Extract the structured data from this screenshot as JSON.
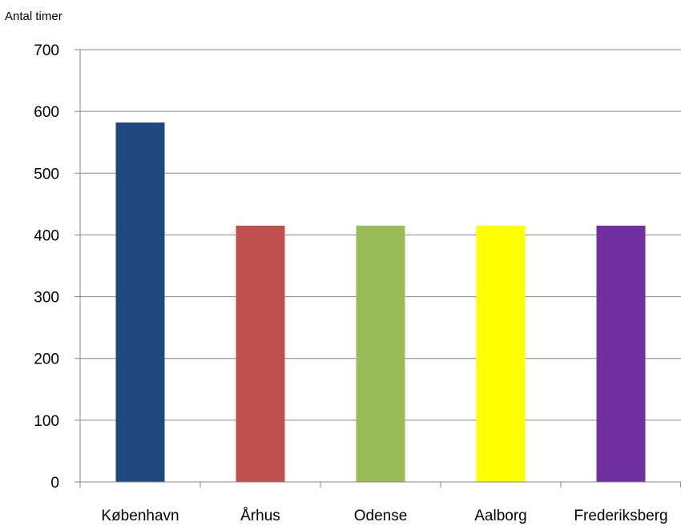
{
  "chart_data": {
    "type": "bar",
    "ylabel": "Antal timer",
    "xlabel": "",
    "categories": [
      "København",
      "Århus",
      "Odense",
      "Aalborg",
      "Frederiksberg"
    ],
    "values": [
      582,
      415,
      415,
      415,
      415
    ],
    "colors": [
      "#1f497d",
      "#c0504d",
      "#9bbb59",
      "#ffff00",
      "#7030a0"
    ],
    "ylim": [
      0,
      700
    ],
    "yticks": [
      0,
      100,
      200,
      300,
      400,
      500,
      600,
      700
    ],
    "grid": true,
    "legend": "none"
  }
}
